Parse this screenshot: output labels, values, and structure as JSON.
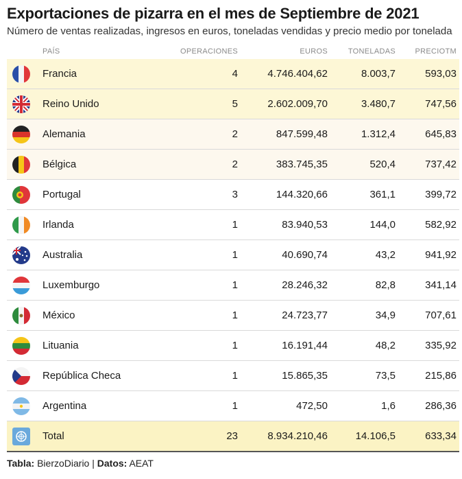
{
  "title": "Exportaciones de pizarra en el mes de Septiembre de 2021",
  "subtitle": "Número de ventas realizadas, ingresos en euros, toneladas vendidas y precio medio por tonelada",
  "columns": {
    "pais": "PAÍS",
    "operaciones": "OPERACIONES",
    "euros": "EUROS",
    "toneladas": "TONELADAS",
    "precio": "PRECIOTM"
  },
  "rows": [
    {
      "pais": "Francia",
      "operaciones": "4",
      "euros": "4.746.404,62",
      "toneladas": "8.003,7",
      "precio": "593,03",
      "flag": "france-flag-icon"
    },
    {
      "pais": "Reino Unido",
      "operaciones": "5",
      "euros": "2.602.009,70",
      "toneladas": "3.480,7",
      "precio": "747,56",
      "flag": "uk-flag-icon"
    },
    {
      "pais": "Alemania",
      "operaciones": "2",
      "euros": "847.599,48",
      "toneladas": "1.312,4",
      "precio": "645,83",
      "flag": "germany-flag-icon"
    },
    {
      "pais": "Bélgica",
      "operaciones": "2",
      "euros": "383.745,35",
      "toneladas": "520,4",
      "precio": "737,42",
      "flag": "belgium-flag-icon"
    },
    {
      "pais": "Portugal",
      "operaciones": "3",
      "euros": "144.320,66",
      "toneladas": "361,1",
      "precio": "399,72",
      "flag": "portugal-flag-icon"
    },
    {
      "pais": "Irlanda",
      "operaciones": "1",
      "euros": "83.940,53",
      "toneladas": "144,0",
      "precio": "582,92",
      "flag": "ireland-flag-icon"
    },
    {
      "pais": "Australia",
      "operaciones": "1",
      "euros": "40.690,74",
      "toneladas": "43,2",
      "precio": "941,92",
      "flag": "australia-flag-icon"
    },
    {
      "pais": "Luxemburgo",
      "operaciones": "1",
      "euros": "28.246,32",
      "toneladas": "82,8",
      "precio": "341,14",
      "flag": "luxembourg-flag-icon"
    },
    {
      "pais": "México",
      "operaciones": "1",
      "euros": "24.723,77",
      "toneladas": "34,9",
      "precio": "707,61",
      "flag": "mexico-flag-icon"
    },
    {
      "pais": "Lituania",
      "operaciones": "1",
      "euros": "16.191,44",
      "toneladas": "48,2",
      "precio": "335,92",
      "flag": "lithuania-flag-icon"
    },
    {
      "pais": "República Checa",
      "operaciones": "1",
      "euros": "15.865,35",
      "toneladas": "73,5",
      "precio": "215,86",
      "flag": "czech-flag-icon"
    },
    {
      "pais": "Argentina",
      "operaciones": "1",
      "euros": "472,50",
      "toneladas": "1,6",
      "precio": "286,36",
      "flag": "argentina-flag-icon"
    }
  ],
  "total": {
    "pais": "Total",
    "operaciones": "23",
    "euros": "8.934.210,46",
    "toneladas": "14.106,5",
    "precio": "633,34",
    "flag": "un-flag-icon"
  },
  "footer": {
    "tabla_label": "Tabla:",
    "tabla_value": "BierzoDiario",
    "separator": "|",
    "datos_label": "Datos:",
    "datos_value": "AEAT"
  },
  "colors": {
    "highlight_strong": "#fdf7d6",
    "highlight_light": "#fdf8ee",
    "total_bg": "#fbf3c4"
  },
  "chart_data": {
    "type": "table",
    "title": "Exportaciones de pizarra en el mes de Septiembre de 2021",
    "subtitle": "Número de ventas realizadas, ingresos en euros, toneladas vendidas y precio medio por tonelada",
    "headers": [
      "PAÍS",
      "OPERACIONES",
      "EUROS",
      "TONELADAS",
      "PRECIOTM"
    ],
    "rows": [
      [
        "Francia",
        4,
        4746404.62,
        8003.7,
        593.03
      ],
      [
        "Reino Unido",
        5,
        2602009.7,
        3480.7,
        747.56
      ],
      [
        "Alemania",
        2,
        847599.48,
        1312.4,
        645.83
      ],
      [
        "Bélgica",
        2,
        383745.35,
        520.4,
        737.42
      ],
      [
        "Portugal",
        3,
        144320.66,
        361.1,
        399.72
      ],
      [
        "Irlanda",
        1,
        83940.53,
        144.0,
        582.92
      ],
      [
        "Australia",
        1,
        40690.74,
        43.2,
        941.92
      ],
      [
        "Luxemburgo",
        1,
        28246.32,
        82.8,
        341.14
      ],
      [
        "México",
        1,
        24723.77,
        34.9,
        707.61
      ],
      [
        "Lituania",
        1,
        16191.44,
        48.2,
        335.92
      ],
      [
        "República Checa",
        1,
        15865.35,
        73.5,
        215.86
      ],
      [
        "Argentina",
        1,
        472.5,
        1.6,
        286.36
      ]
    ],
    "total": [
      "Total",
      23,
      8934210.46,
      14106.5,
      633.34
    ]
  }
}
